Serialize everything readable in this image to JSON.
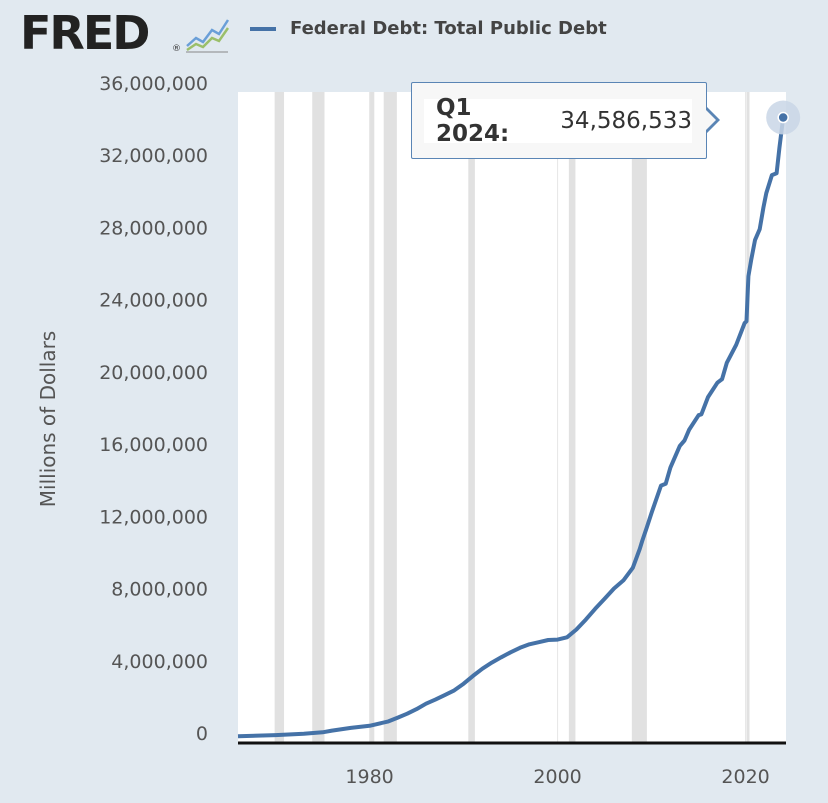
{
  "header": {
    "logo_text": "FRED",
    "logo_reg": "®",
    "legend_label": "Federal Debt: Total Public Debt",
    "legend_color": "#4572a7"
  },
  "tooltip": {
    "date": "Q1 2024:",
    "value": "34,586,533"
  },
  "chart_data": {
    "type": "line",
    "title": "",
    "ylabel": "Millions of Dollars",
    "xlabel": "",
    "xlim": [
      1966,
      2024.3
    ],
    "ylim": [
      0,
      36000000
    ],
    "y_ticks": [
      0,
      4000000,
      8000000,
      12000000,
      16000000,
      20000000,
      24000000,
      28000000,
      32000000,
      36000000
    ],
    "y_tick_labels": [
      "0",
      "4,000,000",
      "8,000,000",
      "12,000,000",
      "16,000,000",
      "20,000,000",
      "24,000,000",
      "28,000,000",
      "32,000,000",
      "36,000,000"
    ],
    "x_ticks": [
      1980,
      2000,
      2020
    ],
    "x_tick_labels": [
      "1980",
      "2000",
      "2020"
    ],
    "grid": "vertical",
    "legend_placement": "top",
    "series_color": "#4572a7",
    "recessions": [
      [
        1969.9,
        1970.9
      ],
      [
        1973.9,
        1975.2
      ],
      [
        1980.0,
        1980.5
      ],
      [
        1981.5,
        1982.9
      ],
      [
        1990.5,
        1991.2
      ],
      [
        2001.2,
        2001.9
      ],
      [
        2007.9,
        2009.5
      ],
      [
        2020.1,
        2020.4
      ]
    ],
    "series": [
      {
        "name": "Federal Debt: Total Public Debt",
        "x": [
          1966,
          1970,
          1973,
          1975,
          1976,
          1978,
          1980,
          1982,
          1983,
          1984,
          1985,
          1986,
          1987,
          1988,
          1989,
          1990,
          1991,
          1992,
          1993,
          1994,
          1995,
          1996,
          1997,
          1998,
          1999,
          2000,
          2001,
          2002,
          2003,
          2004,
          2005,
          2006,
          2007,
          2008,
          2008.75,
          2009,
          2009.5,
          2010,
          2011,
          2011.5,
          2012,
          2013,
          2013.5,
          2014,
          2015,
          2015.3,
          2016,
          2017,
          2017.5,
          2018,
          2019,
          2019.9,
          2020.1,
          2020.3,
          2020.6,
          2021,
          2021.5,
          2021.9,
          2022.2,
          2022.8,
          2023.3,
          2023.6,
          2024.0
        ],
        "y": [
          320000,
          380000,
          460000,
          540000,
          630000,
          780000,
          900000,
          1140000,
          1350000,
          1570000,
          1820000,
          2120000,
          2350000,
          2600000,
          2860000,
          3230000,
          3660000,
          4060000,
          4400000,
          4690000,
          4970000,
          5220000,
          5410000,
          5530000,
          5650000,
          5670000,
          5800000,
          6230000,
          6780000,
          7380000,
          7930000,
          8500000,
          8950000,
          9650000,
          10700000,
          11130000,
          11900000,
          12700000,
          14200000,
          14300000,
          15200000,
          16400000,
          16700000,
          17300000,
          18100000,
          18150000,
          19100000,
          19900000,
          20100000,
          21000000,
          22000000,
          23200000,
          23300000,
          25800000,
          26700000,
          27800000,
          28400000,
          29600000,
          30400000,
          31400000,
          31500000,
          32900000,
          34586533
        ]
      }
    ],
    "annotation": {
      "label": "Q1 2024:",
      "value": "34,586,533",
      "x": 2024.0,
      "y": 34586533
    }
  }
}
